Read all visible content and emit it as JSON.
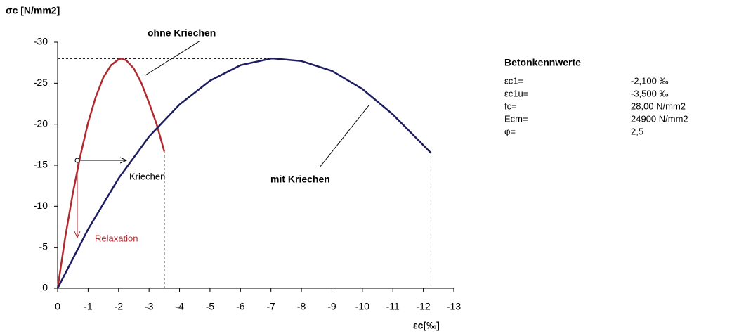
{
  "chart_data": {
    "type": "line",
    "ylabel": "σc [N/mm2]",
    "xlabel": "εc[‰]",
    "xlim": [
      0,
      -13
    ],
    "xticks": [
      0,
      -1,
      -2,
      -3,
      -4,
      -5,
      -6,
      -7,
      -8,
      -9,
      -10,
      -11,
      -12,
      -13
    ],
    "ylim": [
      0,
      -30
    ],
    "yticks": [
      0,
      -5,
      -10,
      -15,
      -20,
      -25,
      -30
    ],
    "series": [
      {
        "name": "ohne Kriechen",
        "color": "#b02a30",
        "x": [
          0,
          -0.25,
          -0.5,
          -0.75,
          -1,
          -1.25,
          -1.5,
          -1.75,
          -2,
          -2.1,
          -2.25,
          -2.5,
          -2.75,
          -3,
          -3.25,
          -3.5
        ],
        "values": [
          0,
          -6.2,
          -11.6,
          -16.2,
          -20.2,
          -23.3,
          -25.7,
          -27.2,
          -27.9,
          -28,
          -27.8,
          -26.8,
          -25,
          -22.6,
          -20,
          -16.7
        ]
      },
      {
        "name": "mit Kriechen",
        "color": "#1c1c5e",
        "x": [
          0,
          -1,
          -2,
          -3,
          -4,
          -5,
          -6,
          -7,
          -7.1,
          -8,
          -9,
          -10,
          -11,
          -12.25
        ],
        "values": [
          0,
          -7.2,
          -13.4,
          -18.5,
          -22.4,
          -25.3,
          -27.2,
          -28,
          -28,
          -27.7,
          -26.5,
          -24.3,
          -21.2,
          -16.5
        ]
      }
    ],
    "annotations": [
      "Kriechen",
      "Relaxation"
    ]
  },
  "panel": {
    "title": "Betonkennwerte",
    "rows": [
      [
        "εc1=",
        "-2,100 ‰"
      ],
      [
        "εc1u=",
        "-3,500 ‰"
      ],
      [
        "fc=",
        "28,00 N/mm2"
      ],
      [
        "Ecm=",
        "24900 N/mm2"
      ],
      [
        "φ=",
        "2,5"
      ]
    ]
  }
}
